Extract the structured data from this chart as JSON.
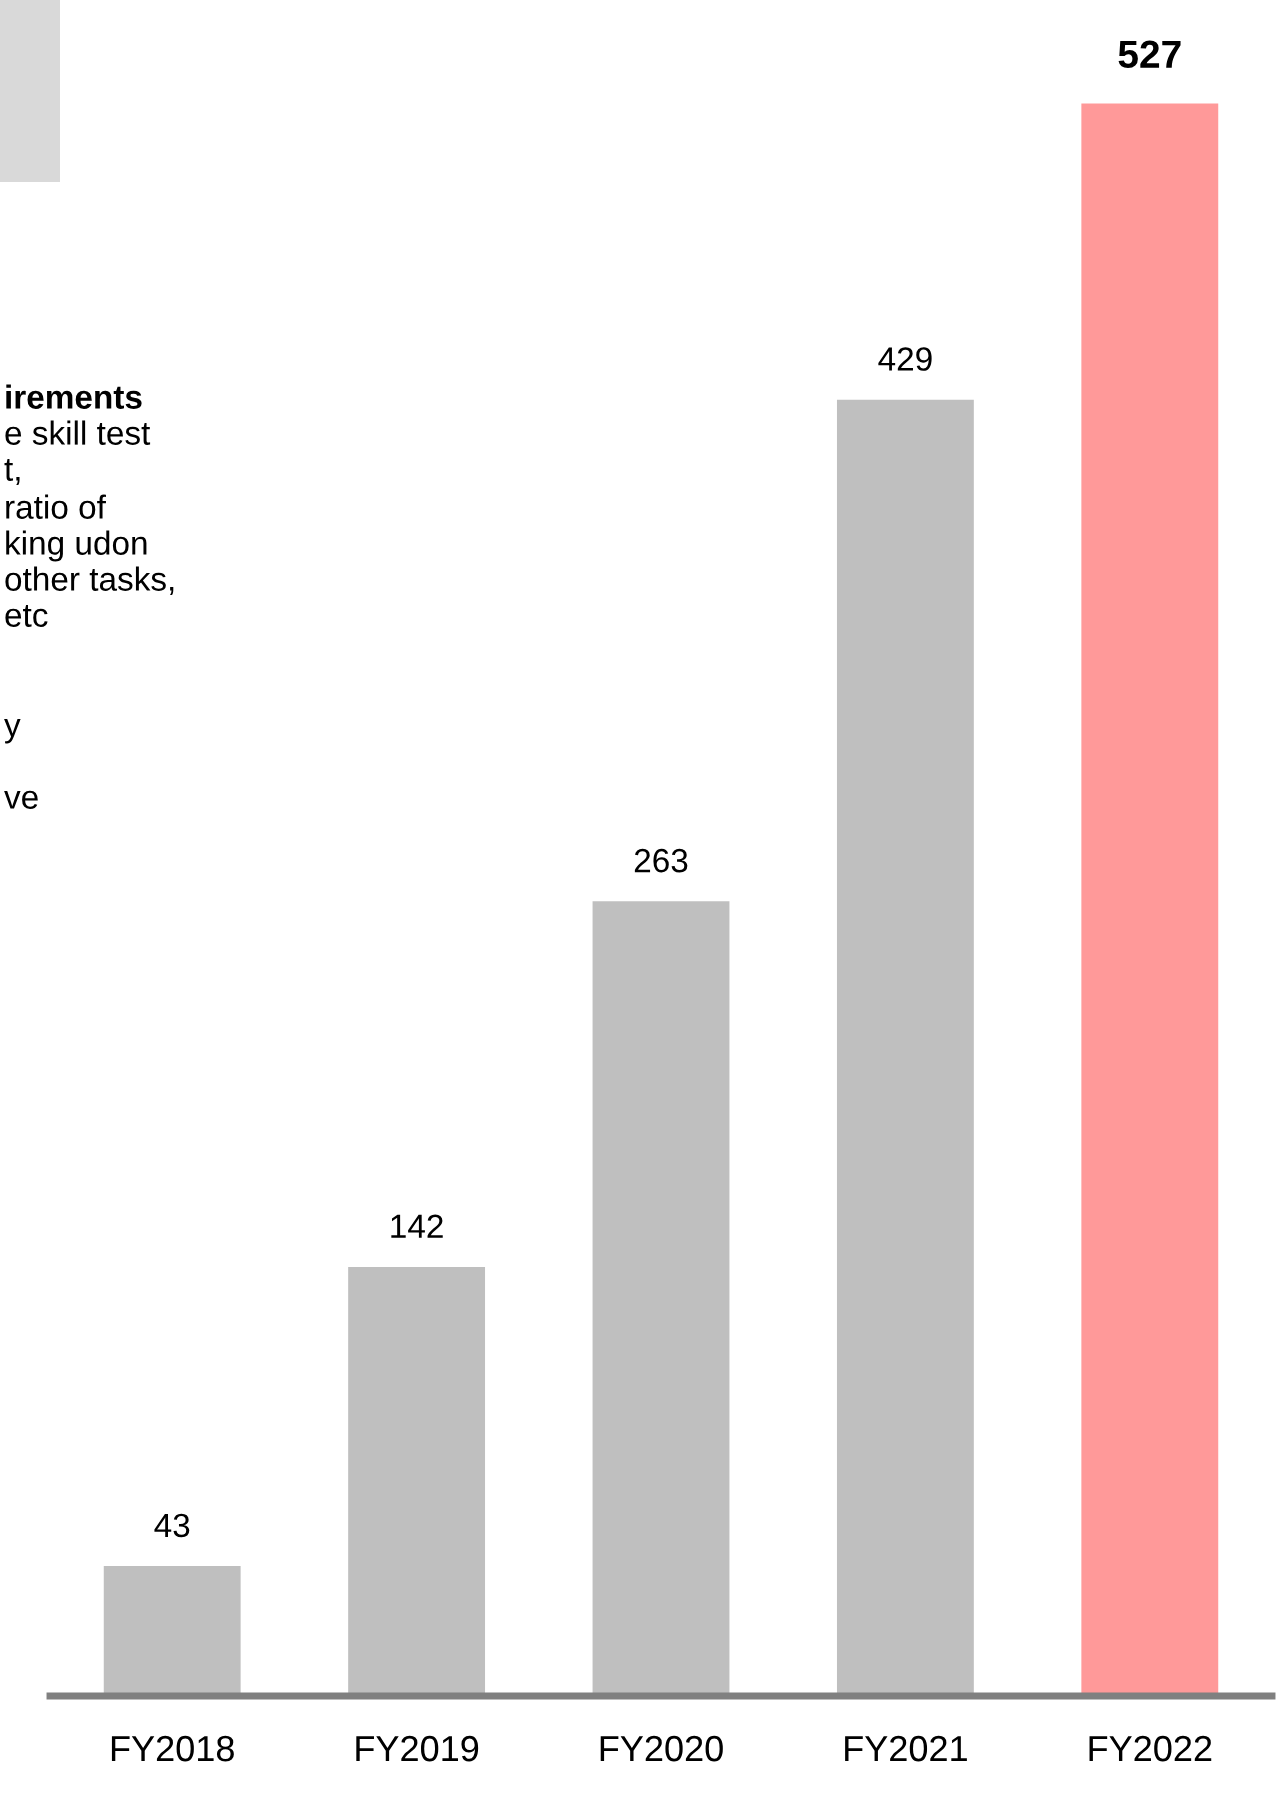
{
  "chart_data": {
    "type": "bar",
    "categories": [
      "FY2018",
      "FY2019",
      "FY2020",
      "FY2021",
      "FY2022"
    ],
    "values": [
      43,
      142,
      263,
      429,
      527
    ],
    "colors": [
      "#bfbfbf",
      "#bfbfbf",
      "#bfbfbf",
      "#bfbfbf",
      "#ff9999"
    ],
    "data_labels": true,
    "annotations": [
      "irements",
      "e skill test",
      "t,",
      "ratio of",
      "king udon",
      "other tasks,",
      "etc",
      "y",
      "ve"
    ]
  }
}
